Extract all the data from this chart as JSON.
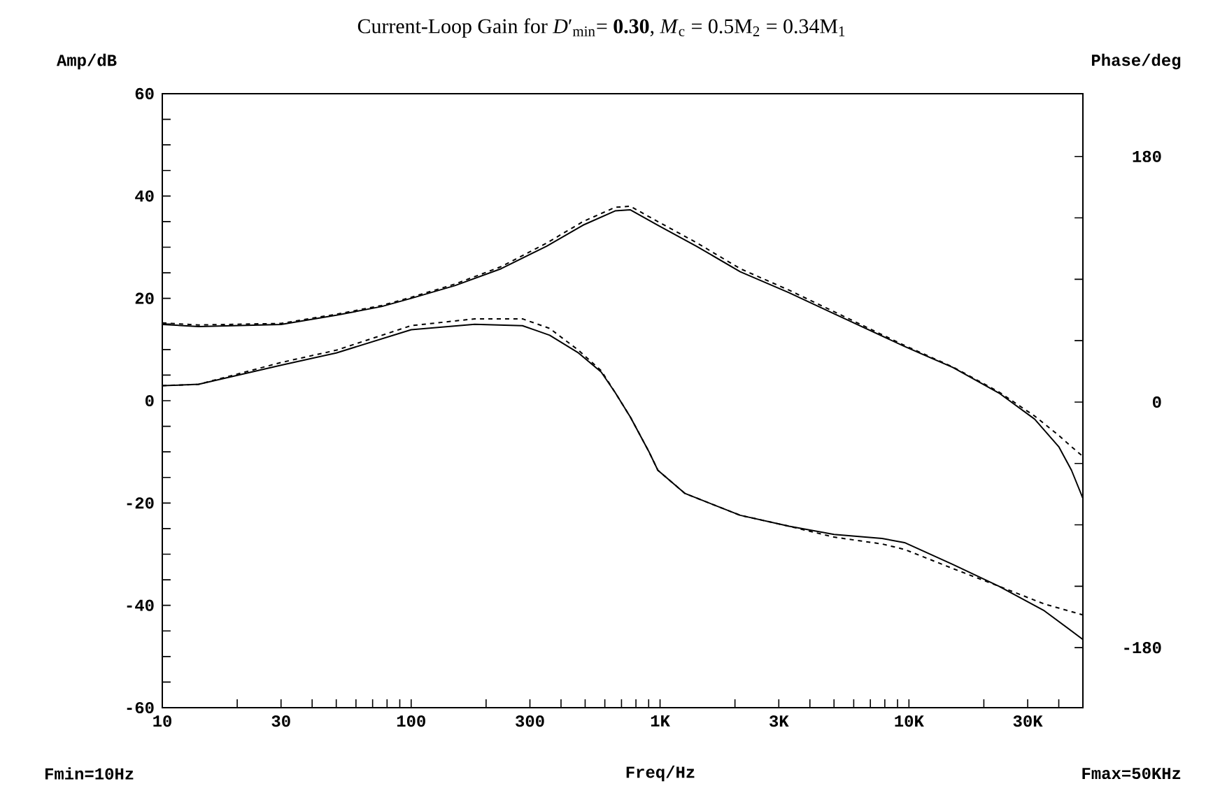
{
  "chart_data": {
    "type": "line",
    "title": "Current-Loop Gain for *D*′$_{min}$= **0.30**, *M*$_{c}$ = 0.5M$_{2}$ = 0.34M$_{1}$",
    "xlabel": "Freq/Hz",
    "ylabel": "Amp/dB",
    "y2label": "Phase/deg",
    "annotations": [
      "Fmin=10Hz",
      "Fmax=50KHz"
    ],
    "log": "x",
    "xlim": [
      10,
      50000
    ],
    "ylim": [
      -60,
      60
    ],
    "y2lim": [
      -224,
      226
    ],
    "xticks": [
      10,
      {
        "value": 20,
        "label": null
      },
      30,
      {
        "value": 40,
        "label": null
      },
      {
        "value": 50,
        "label": null
      },
      {
        "value": 60,
        "label": null
      },
      {
        "value": 70,
        "label": null
      },
      {
        "value": 80,
        "label": null
      },
      {
        "value": 90,
        "label": null
      },
      100,
      {
        "value": 200,
        "label": null
      },
      300,
      {
        "value": 400,
        "label": null
      },
      {
        "value": 500,
        "label": null
      },
      {
        "value": 600,
        "label": null
      },
      {
        "value": 700,
        "label": null
      },
      {
        "value": 800,
        "label": null
      },
      {
        "value": 900,
        "label": null
      },
      {
        "value": 1000,
        "label": "1K"
      },
      {
        "value": 2000,
        "label": null
      },
      {
        "value": 3000,
        "label": "3K"
      },
      {
        "value": 4000,
        "label": null
      },
      {
        "value": 5000,
        "label": null
      },
      {
        "value": 6000,
        "label": null
      },
      {
        "value": 7000,
        "label": null
      },
      {
        "value": 8000,
        "label": null
      },
      {
        "value": 9000,
        "label": null
      },
      {
        "value": 10000,
        "label": "10K"
      },
      {
        "value": 20000,
        "label": null
      },
      {
        "value": 30000,
        "label": "30K"
      },
      {
        "value": 40000,
        "label": null
      }
    ],
    "yticks": [
      -60,
      {
        "value": -55,
        "label": null
      },
      {
        "value": -50,
        "label": null
      },
      {
        "value": -45,
        "label": null
      },
      -40,
      {
        "value": -35,
        "label": null
      },
      {
        "value": -30,
        "label": null
      },
      {
        "value": -25,
        "label": null
      },
      -20,
      {
        "value": -15,
        "label": null
      },
      {
        "value": -10,
        "label": null
      },
      {
        "value": -5,
        "label": null
      },
      0,
      {
        "value": 5,
        "label": null
      },
      {
        "value": 10,
        "label": null
      },
      {
        "value": 15,
        "label": null
      },
      20,
      {
        "value": 25,
        "label": null
      },
      {
        "value": 30,
        "label": null
      },
      {
        "value": 35,
        "label": null
      },
      40,
      {
        "value": 45,
        "label": null
      },
      {
        "value": 50,
        "label": null
      },
      {
        "value": 55,
        "label": null
      },
      60
    ],
    "y2ticks": [
      -180,
      {
        "value": -135,
        "label": null
      },
      {
        "value": -90,
        "label": null
      },
      {
        "value": -45,
        "label": null
      },
      0,
      {
        "value": 45,
        "label": null
      },
      {
        "value": 90,
        "label": null
      },
      {
        "value": 135,
        "label": null
      },
      180
    ],
    "series": [
      {
        "color": "#000000",
        "line_style": "solid",
        "x": [
          10,
          14,
          30,
          50,
          76,
          100,
          150,
          230,
          350,
          490,
          660,
          760,
          980,
          1400,
          2100,
          3300,
          5000,
          9600,
          15000,
          23000,
          32000,
          40000,
          45000,
          50000
        ],
        "values": [
          14.9,
          14.5,
          14.9,
          16.7,
          18.4,
          20.0,
          22.5,
          25.8,
          30.2,
          34.3,
          37.1,
          37.3,
          34.3,
          30.2,
          25.2,
          21.1,
          17.0,
          10.6,
          6.5,
          1.5,
          -3.6,
          -9.0,
          -13.6,
          -19.1
        ]
      },
      {
        "color": "#000000",
        "line_style": "dashed",
        "x": [
          10,
          14,
          30,
          50,
          76,
          100,
          150,
          230,
          350,
          490,
          660,
          760,
          980,
          1400,
          2100,
          3300,
          5000,
          9600,
          15000,
          23000,
          32000,
          40000,
          45000,
          50000
        ],
        "values": [
          15.2,
          14.8,
          15.1,
          16.9,
          18.6,
          20.2,
          22.8,
          26.2,
          30.8,
          35.0,
          37.8,
          38.0,
          35.0,
          30.9,
          25.8,
          21.6,
          17.4,
          10.8,
          6.6,
          1.7,
          -3.0,
          -6.8,
          -9.0,
          -10.9
        ]
      },
      {
        "color": "#000000",
        "line_style": "solid",
        "axis": "y2",
        "x": [
          10,
          14,
          30,
          50,
          100,
          180,
          280,
          360,
          470,
          580,
          660,
          760,
          900,
          980,
          1260,
          2100,
          3300,
          5000,
          7800,
          9600,
          15000,
          23000,
          35000,
          50000
        ],
        "values": [
          12,
          13,
          27,
          36,
          53,
          57,
          56,
          49,
          36,
          22,
          7,
          -11,
          -36,
          -50,
          -67,
          -83,
          -91,
          -97,
          -100,
          -103,
          -119,
          -135,
          -153,
          -174
        ]
      },
      {
        "color": "#000000",
        "line_style": "dashed",
        "axis": "y2",
        "x": [
          10,
          14,
          30,
          50,
          100,
          180,
          280,
          360,
          470,
          580,
          660,
          760,
          900,
          980,
          1260,
          2100,
          3300,
          5000,
          7800,
          9600,
          15000,
          23000,
          35000,
          50000
        ],
        "values": [
          12,
          13,
          29,
          38,
          56,
          61,
          61,
          54,
          38,
          23,
          7,
          -11,
          -36,
          -50,
          -67,
          -83,
          -91,
          -99,
          -104,
          -108,
          -122,
          -135,
          -148,
          -156
        ]
      }
    ]
  }
}
